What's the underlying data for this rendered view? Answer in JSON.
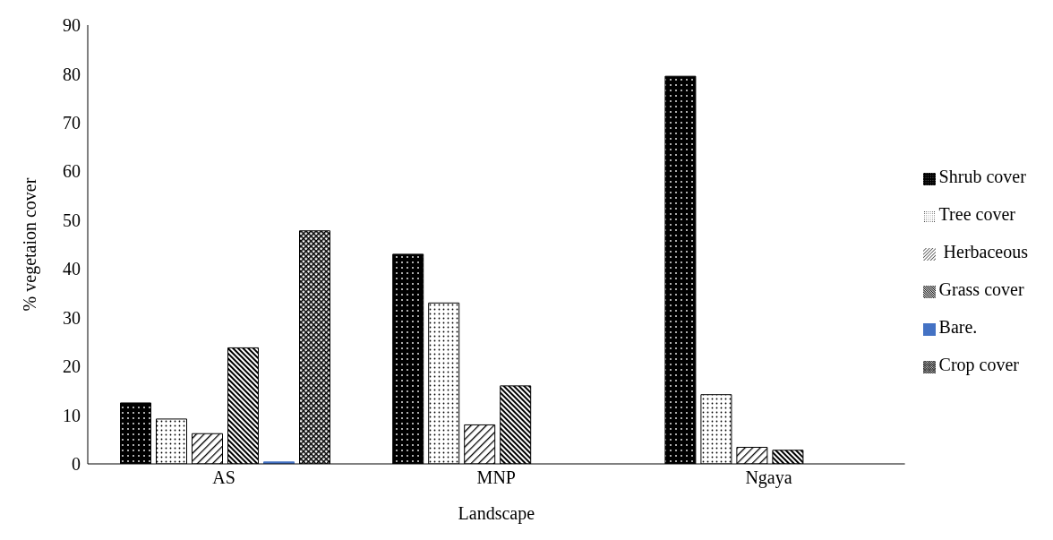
{
  "chart_data": {
    "type": "bar",
    "xlabel": "Landscape",
    "ylabel": "% vegetaion cover",
    "categories": [
      "AS",
      "MNP",
      "Ngaya"
    ],
    "series": [
      {
        "name": "Shrub cover",
        "color": "#000000",
        "values": [
          12.5,
          43,
          79.5
        ]
      },
      {
        "name": "Tree cover",
        "color": "#000000",
        "values": [
          9.2,
          33,
          14.2
        ]
      },
      {
        "name": " Herbaceous",
        "color": "#000000",
        "values": [
          6.2,
          8,
          3.4
        ]
      },
      {
        "name": "Grass cover",
        "color": "#000000",
        "values": [
          23.8,
          16,
          2.8
        ]
      },
      {
        "name": "Bare.",
        "color": "#4472c4",
        "values": [
          0.4,
          0,
          0
        ]
      },
      {
        "name": "Crop cover",
        "color": "#000000",
        "values": [
          47.8,
          0,
          0
        ]
      }
    ],
    "ylim": [
      0,
      90
    ],
    "yticks": [
      0,
      10,
      20,
      30,
      40,
      50,
      60,
      70,
      80,
      90
    ],
    "grid": false,
    "legend": "right"
  }
}
